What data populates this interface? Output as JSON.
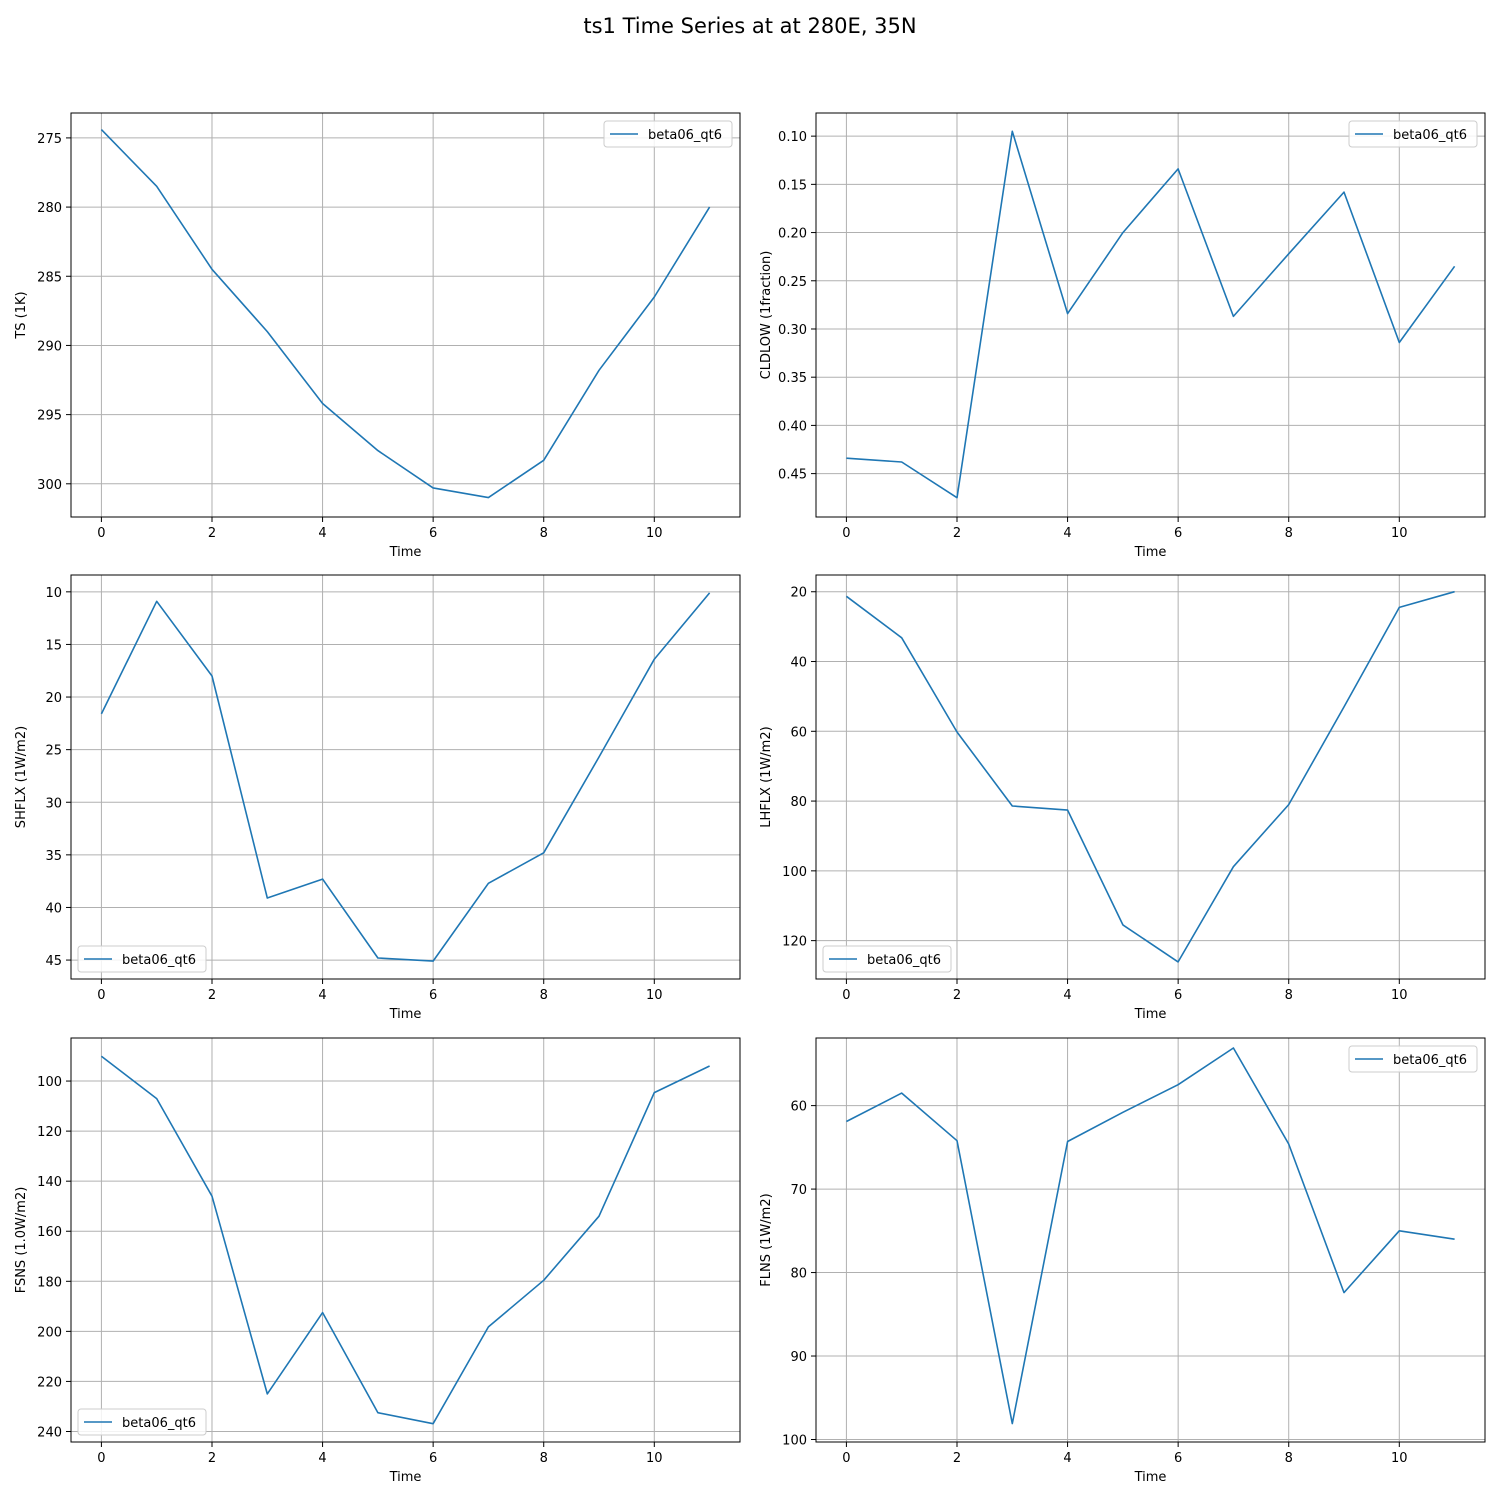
{
  "figure": {
    "title": "ts1 Time Series at at 280E, 35N"
  },
  "colors": {
    "line": "#1f77b4",
    "grid": "#b0b0b0",
    "axes": "#000000"
  },
  "chart_data": [
    {
      "type": "line",
      "xlabel": "Time",
      "ylabel": "TS (1K)",
      "inverted_y": true,
      "grid": true,
      "legend_loc": "upper right",
      "xlim": [
        -0.55,
        11.55
      ],
      "xticks": [
        0,
        2,
        4,
        6,
        8,
        10
      ],
      "ylim": [
        302.4,
        273.2
      ],
      "yticks": [
        275,
        280,
        285,
        290,
        295,
        300
      ],
      "series": [
        {
          "name": "beta06_qt6",
          "x": [
            0,
            1,
            2,
            3,
            4,
            5,
            6,
            7,
            8,
            9,
            10,
            11
          ],
          "y": [
            274.4,
            278.5,
            284.5,
            289.0,
            294.2,
            297.6,
            300.3,
            301.0,
            298.3,
            291.8,
            286.5,
            280.0
          ]
        }
      ]
    },
    {
      "type": "line",
      "xlabel": "Time",
      "ylabel": "CLDLOW (1fraction)",
      "inverted_y": true,
      "grid": true,
      "legend_loc": "upper right",
      "xlim": [
        -0.55,
        11.55
      ],
      "xticks": [
        0,
        2,
        4,
        6,
        8,
        10
      ],
      "ylim": [
        0.495,
        0.076
      ],
      "yticks": [
        0.1,
        0.15,
        0.2,
        0.25,
        0.3,
        0.35,
        0.4,
        0.45
      ],
      "ytick_labels": [
        "0.10",
        "0.15",
        "0.20",
        "0.25",
        "0.30",
        "0.35",
        "0.40",
        "0.45"
      ],
      "series": [
        {
          "name": "beta06_qt6",
          "x": [
            0,
            1,
            2,
            3,
            4,
            5,
            6,
            7,
            8,
            9,
            10,
            11
          ],
          "y": [
            0.434,
            0.438,
            0.475,
            0.095,
            0.284,
            0.2,
            0.134,
            0.287,
            0.222,
            0.158,
            0.314,
            0.235
          ]
        }
      ]
    },
    {
      "type": "line",
      "xlabel": "Time",
      "ylabel": "SHFLX (1W/m2)",
      "inverted_y": true,
      "grid": true,
      "legend_loc": "lower left",
      "xlim": [
        -0.55,
        11.55
      ],
      "xticks": [
        0,
        2,
        4,
        6,
        8,
        10
      ],
      "ylim": [
        46.8,
        8.4
      ],
      "yticks": [
        10,
        15,
        20,
        25,
        30,
        35,
        40,
        45
      ],
      "series": [
        {
          "name": "beta06_qt6",
          "x": [
            0,
            1,
            2,
            3,
            4,
            5,
            6,
            7,
            8,
            9,
            10,
            11
          ],
          "y": [
            21.6,
            10.9,
            18.0,
            39.1,
            37.3,
            44.8,
            45.1,
            37.7,
            34.8,
            25.7,
            16.4,
            10.1
          ]
        }
      ]
    },
    {
      "type": "line",
      "xlabel": "Time",
      "ylabel": "LHFLX (1W/m2)",
      "inverted_y": true,
      "grid": true,
      "legend_loc": "lower left",
      "xlim": [
        -0.55,
        11.55
      ],
      "xticks": [
        0,
        2,
        4,
        6,
        8,
        10
      ],
      "ylim": [
        131.0,
        15.2
      ],
      "yticks": [
        20,
        40,
        60,
        80,
        100,
        120
      ],
      "series": [
        {
          "name": "beta06_qt6",
          "x": [
            0,
            1,
            2,
            3,
            4,
            5,
            6,
            7,
            8,
            9,
            10,
            11
          ],
          "y": [
            21.3,
            33.2,
            60.2,
            81.4,
            82.6,
            115.5,
            126.1,
            98.8,
            81.0,
            53.0,
            24.5,
            20.0
          ]
        }
      ]
    },
    {
      "type": "line",
      "xlabel": "Time",
      "ylabel": "FSNS (1.0W/m2)",
      "inverted_y": true,
      "grid": true,
      "legend_loc": "lower left",
      "xlim": [
        -0.55,
        11.55
      ],
      "xticks": [
        0,
        2,
        4,
        6,
        8,
        10
      ],
      "ylim": [
        244.2,
        82.8
      ],
      "yticks": [
        100,
        120,
        140,
        160,
        180,
        200,
        220,
        240
      ],
      "series": [
        {
          "name": "beta06_qt6",
          "x": [
            0,
            1,
            2,
            3,
            4,
            5,
            6,
            7,
            8,
            9,
            10,
            11
          ],
          "y": [
            90.1,
            107.0,
            146.0,
            225.0,
            192.5,
            232.5,
            236.9,
            198.2,
            179.6,
            154.0,
            104.6,
            94.0
          ]
        }
      ]
    },
    {
      "type": "line",
      "xlabel": "Time",
      "ylabel": "FLNS (1W/m2)",
      "inverted_y": true,
      "grid": true,
      "legend_loc": "upper right",
      "xlim": [
        -0.55,
        11.55
      ],
      "xticks": [
        0,
        2,
        4,
        6,
        8,
        10
      ],
      "ylim": [
        100.3,
        51.9
      ],
      "yticks": [
        60,
        70,
        80,
        90,
        100
      ],
      "series": [
        {
          "name": "beta06_qt6",
          "x": [
            0,
            1,
            2,
            3,
            4,
            5,
            6,
            7,
            8,
            9,
            10,
            11
          ],
          "y": [
            61.9,
            58.5,
            64.2,
            98.1,
            64.3,
            60.8,
            57.5,
            53.1,
            64.6,
            82.4,
            75.0,
            76.0
          ]
        }
      ]
    }
  ]
}
